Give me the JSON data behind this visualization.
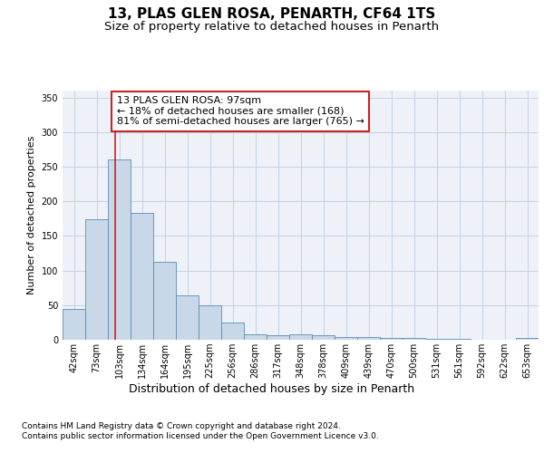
{
  "title1": "13, PLAS GLEN ROSA, PENARTH, CF64 1TS",
  "title2": "Size of property relative to detached houses in Penarth",
  "xlabel": "Distribution of detached houses by size in Penarth",
  "ylabel": "Number of detached properties",
  "categories": [
    "42sqm",
    "73sqm",
    "103sqm",
    "134sqm",
    "164sqm",
    "195sqm",
    "225sqm",
    "256sqm",
    "286sqm",
    "317sqm",
    "348sqm",
    "378sqm",
    "409sqm",
    "439sqm",
    "470sqm",
    "500sqm",
    "531sqm",
    "561sqm",
    "592sqm",
    "622sqm",
    "653sqm"
  ],
  "values": [
    44,
    174,
    260,
    183,
    113,
    64,
    50,
    25,
    8,
    6,
    8,
    6,
    4,
    4,
    3,
    3,
    1,
    1,
    0,
    0,
    3
  ],
  "bar_color": "#c8d8e8",
  "bar_edge_color": "#5b8db8",
  "grid_color": "#c8d4e4",
  "background_color": "#eef2f8",
  "annotation_line1": "13 PLAS GLEN ROSA: 97sqm",
  "annotation_line2": "← 18% of detached houses are smaller (168)",
  "annotation_line3": "81% of semi-detached houses are larger (765) →",
  "vline_color": "#cc2222",
  "footnote1": "Contains HM Land Registry data © Crown copyright and database right 2024.",
  "footnote2": "Contains public sector information licensed under the Open Government Licence v3.0.",
  "ylim": [
    0,
    360
  ],
  "yticks": [
    0,
    50,
    100,
    150,
    200,
    250,
    300,
    350
  ],
  "title1_fontsize": 11,
  "title2_fontsize": 9.5,
  "xlabel_fontsize": 9,
  "ylabel_fontsize": 8,
  "tick_fontsize": 7,
  "footnote_fontsize": 6.5,
  "annotation_fontsize": 8
}
